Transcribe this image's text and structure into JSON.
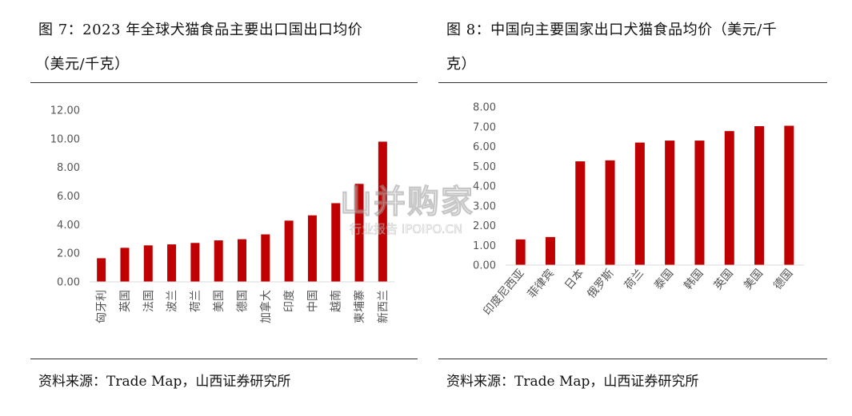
{
  "left": {
    "title_line1": "图 7：2023 年全球犬猫食品主要出口国出口均价",
    "title_line2": "（美元/千克）",
    "source": "资料来源：Trade Map，山西证券研究所"
  },
  "right": {
    "title_line1": "图 8：中国向主要国家出口犬猫食品均价（美元/千",
    "title_line2": "克）",
    "source": "资料来源：Trade Map，山西证券研究所"
  },
  "watermark": {
    "main": "山并购家",
    "sub": "行业报告 IPOIPO.CN"
  },
  "colors": {
    "bar": "#C00000",
    "axis": "#D9D9D9",
    "text": "#595959"
  },
  "chart_data": [
    {
      "type": "bar",
      "title": "图 7：2023 年全球犬猫食品主要出口国出口均价（美元/千克）",
      "categories": [
        "匈牙利",
        "英国",
        "法国",
        "波兰",
        "荷兰",
        "美国",
        "德国",
        "加拿大",
        "印度",
        "中国",
        "越南",
        "柬埔寨",
        "新西兰"
      ],
      "values": [
        1.65,
        2.38,
        2.55,
        2.62,
        2.72,
        2.9,
        2.98,
        3.32,
        4.28,
        4.65,
        5.5,
        6.85,
        9.8
      ],
      "yticks": [
        "0.00",
        "2.00",
        "4.00",
        "6.00",
        "8.00",
        "10.00",
        "12.00"
      ],
      "ylim": [
        0,
        12
      ],
      "grid": false,
      "legend": "none"
    },
    {
      "type": "bar",
      "title": "图 8：中国向主要国家出口犬猫食品均价（美元/千克）",
      "categories": [
        "印度尼西亚",
        "菲律宾",
        "日本",
        "俄罗斯",
        "荷兰",
        "泰国",
        "韩国",
        "英国",
        "美国",
        "德国"
      ],
      "values": [
        1.3,
        1.42,
        5.25,
        5.3,
        6.2,
        6.3,
        6.3,
        6.78,
        7.03,
        7.05
      ],
      "yticks": [
        "0.00",
        "1.00",
        "2.00",
        "3.00",
        "4.00",
        "5.00",
        "6.00",
        "7.00",
        "8.00"
      ],
      "ylim": [
        0,
        8
      ],
      "grid": false,
      "legend": "none"
    }
  ]
}
